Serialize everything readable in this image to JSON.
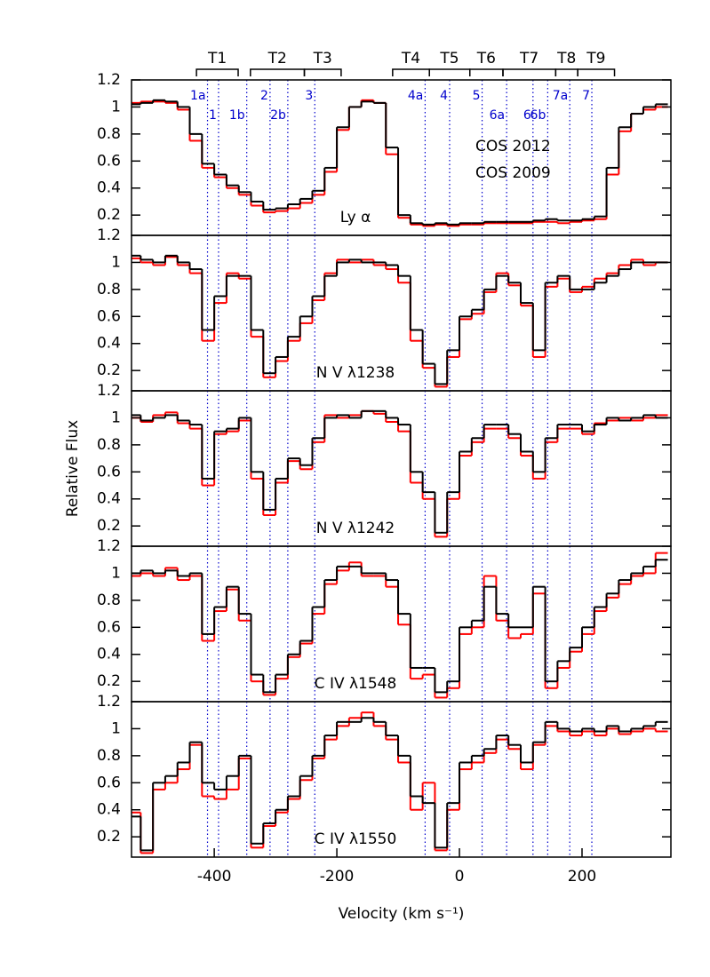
{
  "chart_data": [
    {
      "type": "line",
      "annotation": "Ly α",
      "legend": "upper-right",
      "xlim": [
        -535,
        345
      ],
      "ylim": [
        0.05,
        1.2
      ],
      "yticks": [
        0.2,
        0.4,
        0.6,
        0.8,
        1,
        1.2
      ],
      "x": [
        -530,
        -510,
        -490,
        -470,
        -450,
        -430,
        -410,
        -390,
        -370,
        -350,
        -330,
        -310,
        -290,
        -270,
        -250,
        -230,
        -210,
        -190,
        -170,
        -150,
        -130,
        -110,
        -90,
        -70,
        -50,
        -30,
        -10,
        10,
        30,
        50,
        70,
        90,
        110,
        130,
        150,
        170,
        190,
        210,
        230,
        250,
        270,
        290,
        310,
        330
      ],
      "series": [
        {
          "name": "COS 2012",
          "color": "#000000",
          "values": [
            1.02,
            1.03,
            1.05,
            1.04,
            1.0,
            0.8,
            0.58,
            0.5,
            0.42,
            0.37,
            0.3,
            0.24,
            0.25,
            0.28,
            0.32,
            0.38,
            0.55,
            0.85,
            1.0,
            1.04,
            1.03,
            0.7,
            0.2,
            0.14,
            0.13,
            0.14,
            0.13,
            0.14,
            0.14,
            0.15,
            0.15,
            0.15,
            0.15,
            0.16,
            0.17,
            0.16,
            0.16,
            0.17,
            0.19,
            0.55,
            0.85,
            0.95,
            1.0,
            1.02
          ]
        },
        {
          "name": "COS 2009",
          "color": "#ff0000",
          "values": [
            1.03,
            1.04,
            1.04,
            1.03,
            0.98,
            0.75,
            0.55,
            0.48,
            0.4,
            0.35,
            0.27,
            0.22,
            0.23,
            0.25,
            0.29,
            0.35,
            0.52,
            0.83,
            1.0,
            1.05,
            1.03,
            0.65,
            0.18,
            0.13,
            0.12,
            0.13,
            0.12,
            0.13,
            0.13,
            0.14,
            0.14,
            0.14,
            0.14,
            0.15,
            0.15,
            0.14,
            0.15,
            0.16,
            0.17,
            0.5,
            0.82,
            0.95,
            0.98,
            1.0
          ]
        }
      ],
      "markers": [
        {
          "label": "1a",
          "x": -411
        },
        {
          "label": "1",
          "x": -393
        },
        {
          "label": "1b",
          "x": -347
        },
        {
          "label": "2",
          "x": -309
        },
        {
          "label": "2b",
          "x": -280
        },
        {
          "label": "3",
          "x": -236
        },
        {
          "label": "4a",
          "x": -56
        },
        {
          "label": "4",
          "x": -16
        },
        {
          "label": "5",
          "x": 37
        },
        {
          "label": "6a",
          "x": 77
        },
        {
          "label": "6",
          "x": 120
        },
        {
          "label": "6b",
          "x": 144
        },
        {
          "label": "7a",
          "x": 180
        },
        {
          "label": "7",
          "x": 216
        }
      ],
      "troughs": [
        {
          "label": "T1",
          "range": [
            -429,
            -361
          ]
        },
        {
          "label": "T2",
          "range": [
            -341,
            -253
          ]
        },
        {
          "label": "T3",
          "range": [
            -253,
            -193
          ]
        },
        {
          "label": "T4",
          "range": [
            -109,
            -49
          ]
        },
        {
          "label": "T5",
          "range": [
            -49,
            17
          ]
        },
        {
          "label": "T6",
          "range": [
            17,
            71
          ]
        },
        {
          "label": "T7",
          "range": [
            71,
            157
          ]
        },
        {
          "label": "T8",
          "range": [
            157,
            193
          ]
        },
        {
          "label": "T9",
          "range": [
            193,
            253
          ]
        }
      ]
    },
    {
      "type": "line",
      "annotation": "N V λ1238",
      "xlim": [
        -535,
        345
      ],
      "ylim": [
        0.05,
        1.2
      ],
      "yticks": [
        0.2,
        0.4,
        0.6,
        0.8,
        1,
        1.2
      ],
      "x": [
        -530,
        -510,
        -490,
        -470,
        -450,
        -430,
        -410,
        -390,
        -370,
        -350,
        -330,
        -310,
        -290,
        -270,
        -250,
        -230,
        -210,
        -190,
        -170,
        -150,
        -130,
        -110,
        -90,
        -70,
        -50,
        -30,
        -10,
        10,
        30,
        50,
        70,
        90,
        110,
        130,
        150,
        170,
        190,
        210,
        230,
        250,
        270,
        290,
        310,
        330
      ],
      "series": [
        {
          "name": "COS 2012",
          "color": "#000000",
          "values": [
            1.05,
            1.02,
            1.0,
            1.05,
            1.0,
            0.95,
            0.5,
            0.75,
            0.9,
            0.9,
            0.5,
            0.18,
            0.3,
            0.45,
            0.6,
            0.75,
            0.9,
            1.0,
            1.02,
            1.0,
            1.0,
            0.98,
            0.9,
            0.5,
            0.25,
            0.1,
            0.35,
            0.6,
            0.65,
            0.8,
            0.9,
            0.85,
            0.7,
            0.35,
            0.85,
            0.9,
            0.8,
            0.8,
            0.85,
            0.9,
            0.95,
            1.0,
            1.0,
            1.0
          ]
        },
        {
          "name": "COS 2009",
          "color": "#ff0000",
          "values": [
            1.03,
            1.0,
            0.98,
            1.04,
            0.98,
            0.92,
            0.42,
            0.7,
            0.92,
            0.88,
            0.45,
            0.15,
            0.27,
            0.42,
            0.55,
            0.72,
            0.92,
            1.02,
            1.0,
            1.02,
            0.98,
            0.95,
            0.85,
            0.42,
            0.22,
            0.08,
            0.3,
            0.58,
            0.62,
            0.78,
            0.92,
            0.83,
            0.68,
            0.3,
            0.82,
            0.88,
            0.78,
            0.82,
            0.88,
            0.92,
            0.98,
            1.02,
            0.98,
            1.0
          ]
        }
      ]
    },
    {
      "type": "line",
      "annotation": "N V λ1242",
      "ylabel": "Relative Flux",
      "xlim": [
        -535,
        345
      ],
      "ylim": [
        0.05,
        1.2
      ],
      "yticks": [
        0.2,
        0.4,
        0.6,
        0.8,
        1,
        1.2
      ],
      "x": [
        -530,
        -510,
        -490,
        -470,
        -450,
        -430,
        -410,
        -390,
        -370,
        -350,
        -330,
        -310,
        -290,
        -270,
        -250,
        -230,
        -210,
        -190,
        -170,
        -150,
        -130,
        -110,
        -90,
        -70,
        -50,
        -30,
        -10,
        10,
        30,
        50,
        70,
        90,
        110,
        130,
        150,
        170,
        190,
        210,
        230,
        250,
        270,
        290,
        310,
        330
      ],
      "series": [
        {
          "name": "COS 2012",
          "color": "#000000",
          "values": [
            1.02,
            0.98,
            1.0,
            1.02,
            0.98,
            0.95,
            0.55,
            0.9,
            0.92,
            1.0,
            0.6,
            0.32,
            0.55,
            0.7,
            0.65,
            0.85,
            1.0,
            1.02,
            1.0,
            1.05,
            1.05,
            1.0,
            0.95,
            0.6,
            0.45,
            0.15,
            0.45,
            0.75,
            0.85,
            0.95,
            0.95,
            0.88,
            0.75,
            0.6,
            0.85,
            0.95,
            0.95,
            0.9,
            0.95,
            1.0,
            0.98,
            1.0,
            1.02,
            1.0
          ]
        },
        {
          "name": "COS 2009",
          "color": "#ff0000",
          "values": [
            1.0,
            0.97,
            1.02,
            1.04,
            0.96,
            0.92,
            0.5,
            0.88,
            0.9,
            0.98,
            0.55,
            0.28,
            0.52,
            0.68,
            0.62,
            0.82,
            1.02,
            1.0,
            1.02,
            1.05,
            1.03,
            0.97,
            0.9,
            0.52,
            0.4,
            0.12,
            0.4,
            0.72,
            0.82,
            0.92,
            0.92,
            0.85,
            0.72,
            0.55,
            0.82,
            0.92,
            0.92,
            0.88,
            0.96,
            0.98,
            1.0,
            0.98,
            1.0,
            1.02
          ]
        }
      ]
    },
    {
      "type": "line",
      "annotation": "C IV λ1548",
      "xlim": [
        -535,
        345
      ],
      "ylim": [
        0.05,
        1.2
      ],
      "yticks": [
        0.2,
        0.4,
        0.6,
        0.8,
        1,
        1.2
      ],
      "x": [
        -530,
        -510,
        -490,
        -470,
        -450,
        -430,
        -410,
        -390,
        -370,
        -350,
        -330,
        -310,
        -290,
        -270,
        -250,
        -230,
        -210,
        -190,
        -170,
        -150,
        -130,
        -110,
        -90,
        -70,
        -50,
        -30,
        -10,
        10,
        30,
        50,
        70,
        90,
        110,
        130,
        150,
        170,
        190,
        210,
        230,
        250,
        270,
        290,
        310,
        330
      ],
      "series": [
        {
          "name": "COS 2012",
          "color": "#000000",
          "values": [
            1.0,
            1.02,
            1.0,
            1.02,
            0.98,
            1.0,
            0.55,
            0.75,
            0.9,
            0.7,
            0.25,
            0.12,
            0.25,
            0.4,
            0.5,
            0.75,
            0.95,
            1.05,
            1.05,
            1.0,
            1.0,
            0.95,
            0.7,
            0.3,
            0.3,
            0.12,
            0.2,
            0.6,
            0.65,
            0.9,
            0.7,
            0.6,
            0.6,
            0.9,
            0.2,
            0.35,
            0.45,
            0.6,
            0.75,
            0.85,
            0.95,
            1.0,
            1.05,
            1.1
          ]
        },
        {
          "name": "COS 2009",
          "color": "#ff0000",
          "values": [
            0.98,
            1.0,
            0.98,
            1.04,
            0.95,
            0.98,
            0.5,
            0.72,
            0.88,
            0.65,
            0.2,
            0.1,
            0.22,
            0.38,
            0.48,
            0.7,
            0.92,
            1.02,
            1.08,
            0.98,
            0.98,
            0.9,
            0.62,
            0.22,
            0.25,
            0.08,
            0.15,
            0.55,
            0.6,
            0.98,
            0.65,
            0.52,
            0.55,
            0.85,
            0.15,
            0.3,
            0.42,
            0.55,
            0.72,
            0.82,
            0.92,
            0.98,
            1.0,
            1.15
          ]
        }
      ]
    },
    {
      "type": "line",
      "annotation": "C IV λ1550",
      "xlabel": "Velocity (km s⁻¹)",
      "xlim": [
        -535,
        345
      ],
      "xticks": [
        -400,
        -200,
        0,
        200
      ],
      "ylim": [
        0.05,
        1.2
      ],
      "yticks": [
        0.2,
        0.4,
        0.6,
        0.8,
        1,
        1.2
      ],
      "x": [
        -530,
        -510,
        -490,
        -470,
        -450,
        -430,
        -410,
        -390,
        -370,
        -350,
        -330,
        -310,
        -290,
        -270,
        -250,
        -230,
        -210,
        -190,
        -170,
        -150,
        -130,
        -110,
        -90,
        -70,
        -50,
        -30,
        -10,
        10,
        30,
        50,
        70,
        90,
        110,
        130,
        150,
        170,
        190,
        210,
        230,
        250,
        270,
        290,
        310,
        330
      ],
      "series": [
        {
          "name": "COS 2012",
          "color": "#000000",
          "values": [
            0.35,
            0.1,
            0.6,
            0.65,
            0.75,
            0.9,
            0.6,
            0.55,
            0.65,
            0.8,
            0.15,
            0.3,
            0.4,
            0.5,
            0.65,
            0.8,
            0.95,
            1.05,
            1.05,
            1.08,
            1.05,
            0.95,
            0.8,
            0.5,
            0.45,
            0.12,
            0.45,
            0.75,
            0.8,
            0.85,
            0.95,
            0.88,
            0.75,
            0.9,
            1.05,
            1.0,
            0.98,
            1.0,
            0.98,
            1.02,
            0.98,
            1.0,
            1.02,
            1.05
          ]
        },
        {
          "name": "COS 2009",
          "color": "#ff0000",
          "values": [
            0.38,
            0.08,
            0.55,
            0.6,
            0.7,
            0.88,
            0.5,
            0.48,
            0.55,
            0.78,
            0.12,
            0.28,
            0.38,
            0.48,
            0.62,
            0.78,
            0.92,
            1.02,
            1.08,
            1.12,
            1.02,
            0.92,
            0.75,
            0.4,
            0.6,
            0.1,
            0.4,
            0.7,
            0.75,
            0.82,
            0.92,
            0.85,
            0.7,
            0.88,
            1.02,
            0.98,
            0.95,
            0.98,
            0.95,
            1.0,
            0.96,
            0.98,
            1.0,
            0.98
          ]
        }
      ]
    }
  ]
}
